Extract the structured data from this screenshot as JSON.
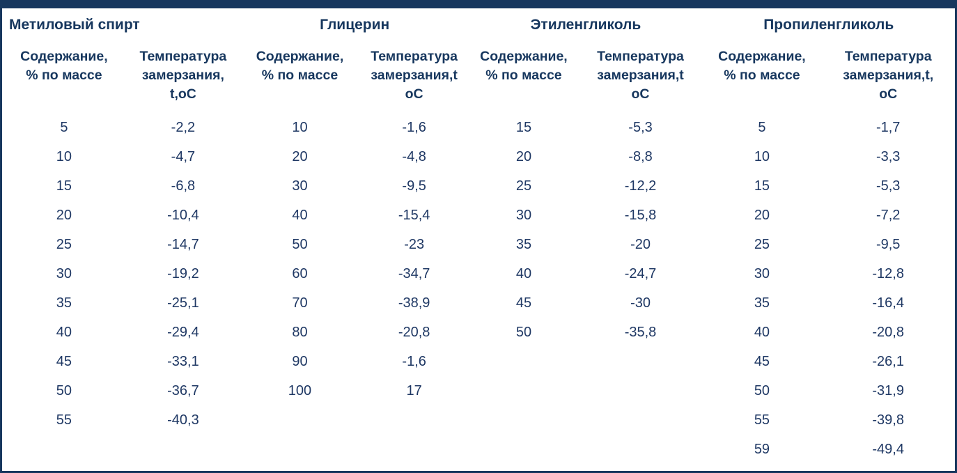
{
  "colors": {
    "accent": "#17375e",
    "text": "#1f3864",
    "background": "#ffffff"
  },
  "table": {
    "groups": [
      {
        "title": "Метиловый спирт",
        "content_header": "Содержание,\n% по массе",
        "temp_header": "Температура\nзамерзания,\nt,оС",
        "rows": [
          {
            "content": "5",
            "temp": "-2,2"
          },
          {
            "content": "10",
            "temp": "-4,7"
          },
          {
            "content": "15",
            "temp": "-6,8"
          },
          {
            "content": "20",
            "temp": "-10,4"
          },
          {
            "content": "25",
            "temp": "-14,7"
          },
          {
            "content": "30",
            "temp": "-19,2"
          },
          {
            "content": "35",
            "temp": "-25,1"
          },
          {
            "content": "40",
            "temp": "-29,4"
          },
          {
            "content": "45",
            "temp": "-33,1"
          },
          {
            "content": "50",
            "temp": "-36,7"
          },
          {
            "content": "55",
            "temp": "-40,3"
          }
        ]
      },
      {
        "title": "Глицерин",
        "content_header": "Содержание,\n% по массе",
        "temp_header": "Температура\nзамерзания,t\nоС",
        "rows": [
          {
            "content": "10",
            "temp": "-1,6"
          },
          {
            "content": "20",
            "temp": "-4,8"
          },
          {
            "content": "30",
            "temp": "-9,5"
          },
          {
            "content": "40",
            "temp": "-15,4"
          },
          {
            "content": "50",
            "temp": "-23"
          },
          {
            "content": "60",
            "temp": "-34,7"
          },
          {
            "content": "70",
            "temp": "-38,9"
          },
          {
            "content": "80",
            "temp": "-20,8"
          },
          {
            "content": "90",
            "temp": "-1,6"
          },
          {
            "content": "100",
            "temp": "17"
          }
        ]
      },
      {
        "title": "Этиленгликоль",
        "content_header": "Содержание,\n% по массе",
        "temp_header": "Температура\nзамерзания,t\nоС",
        "rows": [
          {
            "content": "15",
            "temp": "-5,3"
          },
          {
            "content": "20",
            "temp": "-8,8"
          },
          {
            "content": "25",
            "temp": "-12,2"
          },
          {
            "content": "30",
            "temp": "-15,8"
          },
          {
            "content": "35",
            "temp": "-20"
          },
          {
            "content": "40",
            "temp": "-24,7"
          },
          {
            "content": "45",
            "temp": "-30"
          },
          {
            "content": "50",
            "temp": "-35,8"
          }
        ]
      },
      {
        "title": "Пропиленгликоль",
        "content_header": "Содержание,\n% по массе",
        "temp_header": "Температура\nзамерзания,t,\nоС",
        "rows": [
          {
            "content": "5",
            "temp": "-1,7"
          },
          {
            "content": "10",
            "temp": "-3,3"
          },
          {
            "content": "15",
            "temp": "-5,3"
          },
          {
            "content": "20",
            "temp": "-7,2"
          },
          {
            "content": "25",
            "temp": "-9,5"
          },
          {
            "content": "30",
            "temp": "-12,8"
          },
          {
            "content": "35",
            "temp": "-16,4"
          },
          {
            "content": "40",
            "temp": "-20,8"
          },
          {
            "content": "45",
            "temp": "-26,1"
          },
          {
            "content": "50",
            "temp": "-31,9"
          },
          {
            "content": "55",
            "temp": "-39,8"
          },
          {
            "content": "59",
            "temp": "-49,4"
          }
        ]
      }
    ]
  }
}
